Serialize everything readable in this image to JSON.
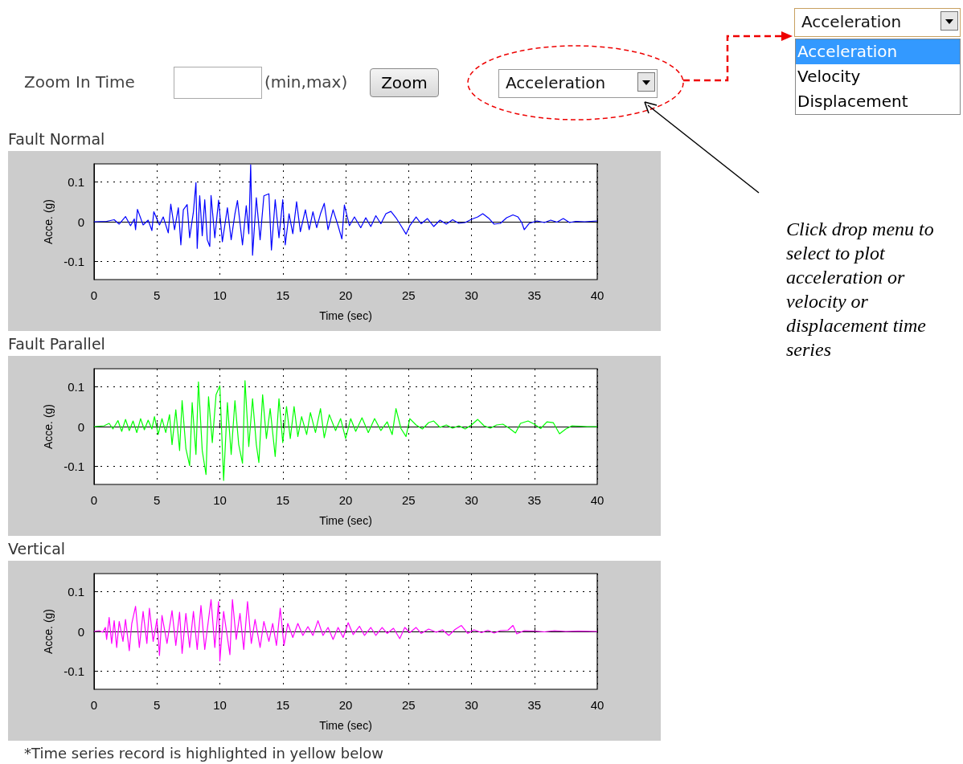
{
  "chart_data": [
    {
      "type": "line",
      "title": "Fault Normal",
      "xlabel": "Time (sec)",
      "ylabel": "Acce. (g)",
      "color": "#0000ff",
      "xlim": [
        0,
        40
      ],
      "xticks": [
        0,
        5,
        10,
        15,
        20,
        25,
        30,
        35,
        40
      ],
      "ylim": [
        -0.145,
        0.145
      ],
      "yticks": [
        -0.1,
        0,
        0.1
      ],
      "grid": true,
      "x": [
        0,
        1,
        1.6,
        2,
        2.5,
        2.9,
        3.2,
        3.3,
        3.45,
        3.9,
        4.3,
        4.6,
        4.75,
        5.2,
        5.5,
        5.9,
        6.1,
        6.4,
        6.7,
        6.9,
        7.1,
        7.4,
        7.6,
        7.9,
        8.1,
        8.2,
        8.4,
        8.6,
        8.8,
        9.0,
        9.2,
        9.3,
        9.6,
        9.9,
        10.2,
        10.6,
        10.9,
        11.2,
        11.4,
        11.8,
        12.1,
        12.3,
        12.45,
        12.6,
        12.9,
        13.2,
        13.5,
        13.9,
        14.1,
        14.4,
        14.7,
        15.0,
        15.2,
        15.5,
        15.8,
        16.1,
        16.4,
        16.8,
        17.1,
        17.4,
        17.7,
        18.0,
        18.3,
        18.6,
        19.0,
        19.4,
        19.7,
        19.9,
        20.3,
        20.7,
        21.2,
        21.6,
        22.0,
        22.4,
        22.8,
        23.2,
        23.6,
        24.0,
        24.4,
        24.8,
        25.1,
        25.6,
        26.0,
        26.5,
        27.0,
        27.5,
        28.0,
        28.5,
        29.0,
        29.5,
        30.0,
        30.5,
        30.9,
        31.4,
        31.8,
        32.3,
        32.8,
        33.3,
        33.7,
        34.0,
        34.2,
        34.6,
        35.2,
        35.8,
        36.3,
        36.8,
        37.3,
        37.8,
        38.3,
        39.0,
        40
      ],
      "values": [
        0,
        0.001,
        0.005,
        -0.006,
        0.013,
        -0.01,
        0.007,
        -0.02,
        0.031,
        -0.008,
        0.004,
        -0.022,
        0.025,
        -0.008,
        0.012,
        -0.028,
        0.044,
        -0.02,
        0.035,
        -0.058,
        0.03,
        0.043,
        -0.04,
        0.025,
        0.098,
        -0.067,
        0.065,
        -0.035,
        0.055,
        -0.045,
        -0.062,
        0.066,
        -0.04,
        0.054,
        -0.05,
        0.035,
        -0.045,
        0.02,
        0.053,
        -0.058,
        0.04,
        -0.03,
        0.143,
        -0.084,
        0.06,
        -0.045,
        0.065,
        0.07,
        -0.071,
        0.055,
        -0.04,
        0.055,
        -0.058,
        0.02,
        -0.03,
        0.05,
        -0.025,
        0.03,
        -0.02,
        0.025,
        -0.015,
        0.02,
        0.046,
        -0.02,
        0.03,
        -0.01,
        -0.043,
        0.042,
        -0.01,
        0.012,
        -0.015,
        0.01,
        -0.012,
        0.015,
        -0.005,
        0.02,
        0.026,
        0.01,
        -0.01,
        -0.031,
        -0.01,
        0.012,
        -0.005,
        0.008,
        -0.012,
        0.004,
        -0.006,
        0.005,
        -0.004,
        -0.002,
        0.006,
        0.012,
        0.02,
        0.008,
        -0.006,
        -0.004,
        0.01,
        0.017,
        0.012,
        -0.002,
        -0.02,
        -0.004,
        0.002,
        -0.002,
        0.004,
        -0.001,
        0.008,
        -0.002,
        0.001,
        0,
        0.002
      ]
    },
    {
      "type": "line",
      "title": "Fault Parallel",
      "xlabel": "Time (sec)",
      "ylabel": "Acce. (g)",
      "color": "#00ff00",
      "xlim": [
        0,
        40
      ],
      "xticks": [
        0,
        5,
        10,
        15,
        20,
        25,
        30,
        35,
        40
      ],
      "ylim": [
        -0.145,
        0.145
      ],
      "yticks": [
        -0.1,
        0,
        0.1
      ],
      "grid": true,
      "x": [
        0,
        0.8,
        1.2,
        1.5,
        1.9,
        2.2,
        2.5,
        2.8,
        3.1,
        3.4,
        3.7,
        4.0,
        4.3,
        4.6,
        4.8,
        5.1,
        5.4,
        5.7,
        6.0,
        6.2,
        6.5,
        6.8,
        7.0,
        7.3,
        7.6,
        7.8,
        8.1,
        8.3,
        8.6,
        8.9,
        9.1,
        9.4,
        9.7,
        10.0,
        10.3,
        10.6,
        10.9,
        11.2,
        11.5,
        11.8,
        12.0,
        12.3,
        12.6,
        12.9,
        13.1,
        13.4,
        13.7,
        14.0,
        14.4,
        14.7,
        15.0,
        15.3,
        15.6,
        15.9,
        16.2,
        16.5,
        16.9,
        17.2,
        17.6,
        18.0,
        18.3,
        18.7,
        19.2,
        19.6,
        20.0,
        20.4,
        20.8,
        21.3,
        21.8,
        22.3,
        22.8,
        23.3,
        23.7,
        24.0,
        24.4,
        24.8,
        25.1,
        25.6,
        26.1,
        26.6,
        27.0,
        27.5,
        28.0,
        28.5,
        29.0,
        29.5,
        30.0,
        30.5,
        31.0,
        31.5,
        32.0,
        32.5,
        33.0,
        33.5,
        33.9,
        34.5,
        35.0,
        35.5,
        36.0,
        36.5,
        37.0,
        37.5,
        38.0,
        38.6,
        39.2,
        40
      ],
      "values": [
        0,
        0.002,
        0.008,
        -0.006,
        0.015,
        -0.012,
        0.018,
        -0.01,
        0.014,
        -0.015,
        0.02,
        -0.008,
        0.016,
        -0.006,
        0.025,
        -0.02,
        0.02,
        -0.015,
        0.03,
        -0.045,
        0.042,
        -0.06,
        0.065,
        -0.055,
        -0.098,
        0.06,
        -0.07,
        0.112,
        -0.06,
        -0.12,
        0.075,
        -0.04,
        0.08,
        0.102,
        -0.135,
        0.06,
        -0.07,
        0.065,
        -0.045,
        -0.092,
        0.115,
        -0.05,
        0.07,
        -0.045,
        -0.09,
        0.08,
        -0.03,
        0.045,
        -0.075,
        0.07,
        -0.04,
        0.05,
        -0.03,
        0.05,
        -0.025,
        0.025,
        -0.02,
        0.035,
        -0.015,
        0.045,
        -0.028,
        0.03,
        -0.01,
        0.02,
        -0.03,
        0.02,
        -0.012,
        0.022,
        -0.015,
        0.02,
        -0.01,
        0.012,
        -0.02,
        0.045,
        -0.005,
        -0.025,
        0.02,
        0.004,
        -0.006,
        0.01,
        0.014,
        -0.002,
        0.004,
        -0.004,
        0.002,
        -0.006,
        0.004,
        0.018,
        0.002,
        -0.004,
        0.004,
        0.006,
        -0.004,
        -0.016,
        0.008,
        0.014,
        0.006,
        -0.005,
        0.012,
        0.01,
        -0.018,
        -0.006,
        0.002,
        0.001,
        0,
        0
      ]
    },
    {
      "type": "line",
      "title": "Vertical",
      "xlabel": "Time (sec)",
      "ylabel": "Acce. (g)",
      "color": "#ff00ff",
      "xlim": [
        0,
        40
      ],
      "xticks": [
        0,
        5,
        10,
        15,
        20,
        25,
        30,
        35,
        40
      ],
      "ylim": [
        -0.145,
        0.145
      ],
      "yticks": [
        -0.1,
        0,
        0.1
      ],
      "grid": true,
      "annotations": [
        "*Time series record is highlighted in yellow below"
      ],
      "x": [
        0,
        0.4,
        0.7,
        0.9,
        1.0,
        1.2,
        1.4,
        1.6,
        1.8,
        2.0,
        2.3,
        2.5,
        2.8,
        3.0,
        3.3,
        3.6,
        3.9,
        4.2,
        4.4,
        4.7,
        5.0,
        5.2,
        5.4,
        5.8,
        6.2,
        6.5,
        6.8,
        7.0,
        7.3,
        7.6,
        7.9,
        8.2,
        8.5,
        8.8,
        9.3,
        9.6,
        9.9,
        10.0,
        10.3,
        10.8,
        11.0,
        11.3,
        11.6,
        11.9,
        12.2,
        12.5,
        12.8,
        13.2,
        13.5,
        13.9,
        14.2,
        14.5,
        14.8,
        15.1,
        15.4,
        15.8,
        16.2,
        16.6,
        17.0,
        17.4,
        17.8,
        18.2,
        18.6,
        19.0,
        19.4,
        19.8,
        20.2,
        20.6,
        21.1,
        21.5,
        22.0,
        22.4,
        22.9,
        23.3,
        23.8,
        24.3,
        24.7,
        25.1,
        25.6,
        26.0,
        26.6,
        27.2,
        27.7,
        28.2,
        28.7,
        29.2,
        29.7,
        30.2,
        30.8,
        31.3,
        31.8,
        32.3,
        32.9,
        33.3,
        33.6,
        34.2,
        35.0,
        35.8,
        36.6,
        37.5,
        38.5,
        40
      ],
      "values": [
        0,
        0.002,
        -0.002,
        0.01,
        -0.02,
        0.035,
        -0.03,
        0.027,
        -0.04,
        0.025,
        -0.025,
        0.03,
        -0.048,
        0.02,
        0.063,
        -0.04,
        0.05,
        -0.03,
        0.058,
        -0.025,
        0.03,
        -0.06,
        0.04,
        -0.03,
        0.052,
        -0.035,
        0.048,
        -0.055,
        0.045,
        -0.04,
        0.05,
        -0.045,
        0.065,
        -0.045,
        0.08,
        -0.04,
        0.075,
        -0.074,
        0.05,
        -0.058,
        0.08,
        -0.02,
        0.045,
        -0.045,
        0.075,
        -0.03,
        0.03,
        -0.04,
        0.025,
        -0.025,
        0.02,
        -0.035,
        0.058,
        -0.035,
        0.02,
        -0.015,
        0.02,
        -0.01,
        0.012,
        -0.01,
        0.027,
        -0.01,
        0.01,
        -0.02,
        0.01,
        -0.015,
        0.022,
        -0.008,
        0.013,
        -0.01,
        0.01,
        -0.01,
        0.01,
        -0.005,
        0.008,
        -0.018,
        0.01,
        -0.003,
        0.01,
        -0.005,
        0.006,
        -0.002,
        0.004,
        -0.01,
        0.005,
        0.015,
        -0.005,
        0.004,
        -0.003,
        0.003,
        -0.004,
        0.002,
        0.003,
        0.015,
        -0.006,
        0.002,
        0.001,
        -0.001,
        0.002,
        0,
        0.001,
        0
      ]
    },
    {
      "type": "other",
      "annotations": [
        "Zoom In Time",
        "(min,max)",
        "Zoom",
        "Acceleration",
        "Acceleration",
        "Acceleration",
        "Velocity",
        "Displacement",
        "Click drop menu to select to plot acceleration or velocity or displacement time series"
      ]
    }
  ]
}
